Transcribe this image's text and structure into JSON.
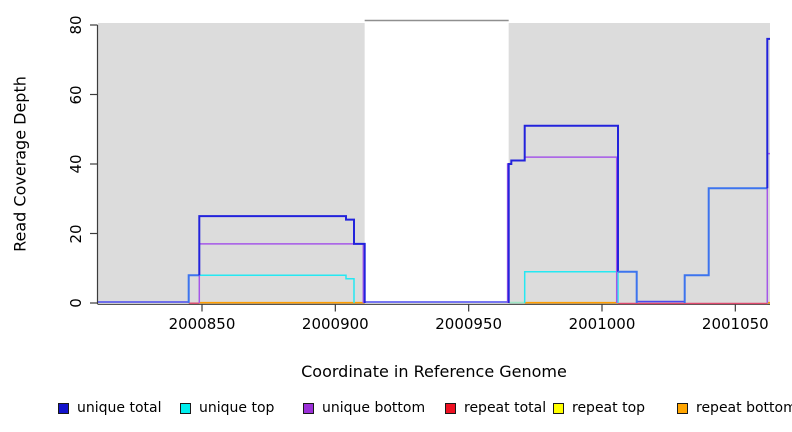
{
  "y_axis": {
    "label": "Read Coverage Depth",
    "ticks": [
      0,
      20,
      40,
      60,
      80
    ],
    "range": [
      0,
      80
    ]
  },
  "x_axis": {
    "label": "Coordinate in Reference Genome",
    "ticks": [
      2000850,
      2000900,
      2000950,
      2001000,
      2001050
    ],
    "range": [
      2000811,
      2001063
    ]
  },
  "legend": [
    {
      "label": "unique total",
      "color": "#1212CC"
    },
    {
      "label": "unique top",
      "color": "#00EEEE"
    },
    {
      "label": "unique bottom",
      "color": "#9B30D8"
    },
    {
      "label": "repeat total",
      "color": "#EE1122"
    },
    {
      "label": "repeat top",
      "color": "#FFFF00"
    },
    {
      "label": "repeat bottom",
      "color": "#FFA500"
    }
  ],
  "palette": {
    "blue_dark": "#2323DC",
    "blue_bright": "#3D74EE",
    "blue_base": "#4A4AEE",
    "cyan": "#25E8F2",
    "cyan_pale": "#9FE6C4",
    "purple": "#A557E8",
    "red": "#E04A6E",
    "orange": "#FF9D00",
    "region_fill": "#DCDCDC",
    "region_gap_line": "#8F8F8F",
    "axis": "#3C3C3C"
  },
  "chart_data": {
    "type": "line",
    "title": "",
    "xlabel": "Coordinate in Reference Genome",
    "ylabel": "Read Coverage Depth",
    "x_range": [
      2000811,
      2001063
    ],
    "y_range": [
      0,
      80
    ],
    "grid": false,
    "legend_position": "bottom",
    "shaded_regions": [
      [
        2000811,
        2000911
      ],
      [
        2000965,
        2001063
      ]
    ],
    "gap_top_line": {
      "from": 2000911,
      "to": 2000965
    },
    "series": [
      {
        "name": "unique total",
        "start": [
          2000811,
          0
        ],
        "steps": [
          [
            2000845,
            8
          ],
          [
            2000849,
            25
          ],
          [
            2000904,
            24
          ],
          [
            2000907,
            17
          ],
          [
            2000911,
            0
          ],
          [
            2000965,
            40
          ],
          [
            2000966,
            41
          ],
          [
            2000971,
            51
          ],
          [
            2001006,
            9
          ],
          [
            2001013,
            0
          ],
          [
            2001031,
            8
          ],
          [
            2001040,
            33
          ],
          [
            2001062,
            76
          ]
        ],
        "end": 2001063
      },
      {
        "name": "unique top",
        "start": [
          2000845,
          8
        ],
        "steps": [
          [
            2000904,
            7
          ],
          [
            2000907,
            0
          ],
          [
            2000971,
            9
          ],
          [
            2001006,
            0
          ]
        ],
        "end": 2001013
      },
      {
        "name": "unique bottom",
        "start": [
          2000849,
          17
        ],
        "steps": [
          [
            2000911,
            0
          ],
          [
            2000965,
            40
          ],
          [
            2000966,
            41
          ],
          [
            2000971,
            42
          ],
          [
            2001006,
            0
          ],
          [
            2001062,
            43
          ]
        ],
        "end": 2001063
      },
      {
        "name": "repeat total",
        "start": [
          2000845,
          0
        ],
        "steps": [],
        "end": 2001062
      },
      {
        "name": "repeat top",
        "start": [
          2000845,
          0
        ],
        "steps": [],
        "end": 2001062
      },
      {
        "name": "repeat bottom",
        "start": [
          2000849,
          0
        ],
        "steps": [],
        "end": 2001063
      }
    ],
    "render_lines": [
      {
        "name": "baseline-blue-left",
        "color": "blue_base",
        "w": 1.6,
        "dy": -1.0,
        "pts": [
          [
            2000811,
            0
          ],
          [
            2000845,
            0
          ]
        ]
      },
      {
        "name": "baseline-red-1",
        "color": "red",
        "w": 1.4,
        "dy": 0.2,
        "pts": [
          [
            2000845,
            0
          ],
          [
            2000849,
            0
          ]
        ]
      },
      {
        "name": "baseline-orange-1",
        "color": "orange",
        "w": 1.6,
        "dy": -0.3,
        "pts": [
          [
            2000849,
            0
          ],
          [
            2000911,
            0
          ]
        ]
      },
      {
        "name": "baseline-blue-gap",
        "color": "blue_base",
        "w": 1.6,
        "dy": -1.0,
        "pts": [
          [
            2000911,
            0
          ],
          [
            2000965,
            0
          ]
        ]
      },
      {
        "name": "baseline-cyan-pale",
        "color": "cyan_pale",
        "w": 1.6,
        "dy": -0.4,
        "pts": [
          [
            2000965,
            0
          ],
          [
            2000971,
            0
          ]
        ]
      },
      {
        "name": "baseline-orange-2",
        "color": "orange",
        "w": 1.6,
        "dy": -0.3,
        "pts": [
          [
            2000971,
            0
          ],
          [
            2001006,
            0
          ]
        ]
      },
      {
        "name": "baseline-red-2",
        "color": "red",
        "w": 1.4,
        "dy": 0.4,
        "pts": [
          [
            2001006,
            0
          ],
          [
            2001062,
            0
          ]
        ]
      },
      {
        "name": "baseline-blue-mid",
        "color": "blue_base",
        "w": 1.6,
        "dy": -1.4,
        "pts": [
          [
            2001013,
            0
          ],
          [
            2001031,
            0
          ]
        ]
      },
      {
        "name": "baseline-orange-3",
        "color": "orange",
        "w": 1.6,
        "dy": -0.3,
        "pts": [
          [
            2001062,
            0
          ],
          [
            2001063,
            0
          ]
        ]
      },
      {
        "name": "unique-top-hump1",
        "color": "cyan",
        "w": 1.5,
        "dy": 0,
        "pts": [
          [
            2000845,
            0
          ],
          [
            2000845,
            8
          ],
          [
            2000904,
            8
          ],
          [
            2000904,
            7
          ],
          [
            2000907,
            7
          ],
          [
            2000907,
            0
          ]
        ]
      },
      {
        "name": "unique-top-hump2",
        "color": "cyan",
        "w": 1.5,
        "dy": 0,
        "pts": [
          [
            2000971,
            0
          ],
          [
            2000971,
            9
          ],
          [
            2001006,
            9
          ],
          [
            2001006,
            0
          ]
        ]
      },
      {
        "name": "unique-bottom-hump1",
        "color": "purple",
        "w": 1.5,
        "dy": 0,
        "pts": [
          [
            2000849,
            0
          ],
          [
            2000849,
            17
          ],
          [
            2000910.5,
            17
          ],
          [
            2000910.5,
            0
          ]
        ]
      },
      {
        "name": "unique-bottom-hump2",
        "color": "purple",
        "w": 1.5,
        "dy": 0,
        "pts": [
          [
            2000964.6,
            0
          ],
          [
            2000964.6,
            40
          ],
          [
            2000966,
            40
          ],
          [
            2000966,
            41
          ],
          [
            2000971,
            41
          ],
          [
            2000971,
            42
          ],
          [
            2001005.5,
            42
          ],
          [
            2001005.5,
            0
          ]
        ]
      },
      {
        "name": "unique-bottom-edge",
        "color": "purple",
        "w": 1.5,
        "dy": 0,
        "pts": [
          [
            2001062,
            0
          ],
          [
            2001062,
            43
          ],
          [
            2001063,
            43
          ]
        ]
      },
      {
        "name": "unique-total-rise1",
        "color": "blue_bright",
        "w": 2,
        "dy": 0,
        "pts": [
          [
            2000845,
            0
          ],
          [
            2000845,
            8
          ],
          [
            2000849,
            8
          ]
        ]
      },
      {
        "name": "unique-total-hump1",
        "color": "blue_dark",
        "w": 2,
        "dy": 0,
        "pts": [
          [
            2000849,
            8
          ],
          [
            2000849,
            25
          ],
          [
            2000904,
            25
          ],
          [
            2000904,
            24
          ],
          [
            2000907,
            24
          ],
          [
            2000907,
            17
          ],
          [
            2000911,
            17
          ],
          [
            2000911,
            0
          ]
        ]
      },
      {
        "name": "unique-total-hump2",
        "color": "blue_dark",
        "w": 2,
        "dy": 0,
        "pts": [
          [
            2000965,
            0
          ],
          [
            2000965,
            40
          ],
          [
            2000966,
            40
          ],
          [
            2000966,
            41
          ],
          [
            2000971,
            41
          ],
          [
            2000971,
            51
          ],
          [
            2001006,
            51
          ],
          [
            2001006,
            9
          ]
        ]
      },
      {
        "name": "unique-total-shelf9",
        "color": "blue_bright",
        "w": 2,
        "dy": 0,
        "pts": [
          [
            2001006,
            9
          ],
          [
            2001013,
            9
          ],
          [
            2001013,
            0
          ]
        ]
      },
      {
        "name": "unique-total-hump3",
        "color": "blue_bright",
        "w": 2,
        "dy": 0,
        "pts": [
          [
            2001031,
            0
          ],
          [
            2001031,
            8
          ],
          [
            2001040,
            8
          ],
          [
            2001040,
            33
          ],
          [
            2001062,
            33
          ]
        ]
      },
      {
        "name": "unique-total-edge",
        "color": "blue_dark",
        "w": 2,
        "dy": 0,
        "pts": [
          [
            2001062,
            33
          ],
          [
            2001062,
            76
          ],
          [
            2001063,
            76
          ]
        ]
      }
    ]
  }
}
